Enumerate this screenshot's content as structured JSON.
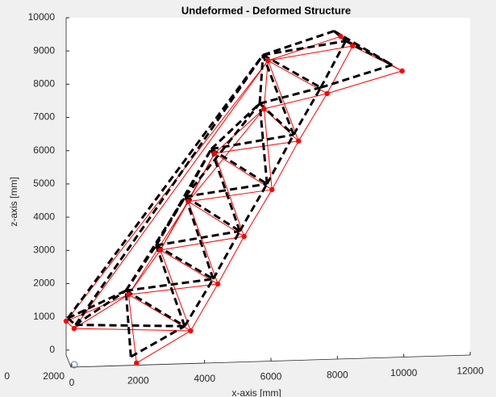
{
  "chart_data": {
    "type": "truss",
    "title": "Undeformed - Deformed Structure",
    "xlabel": "x-axis [mm]",
    "zlabel": "z-axis [mm]",
    "xlim": [
      -170,
      12000
    ],
    "xticks": [
      0,
      2000,
      4000,
      6000,
      8000,
      10000,
      12000
    ],
    "ylim": [
      -270,
      10000
    ],
    "yticks": [
      0,
      1000,
      2000,
      3000,
      4000,
      5000,
      6000,
      7000,
      8000,
      9000,
      10000
    ],
    "depth_ticks": [
      2000,
      0
    ],
    "members": [
      [
        0,
        1
      ],
      [
        0,
        13
      ],
      [
        1,
        13
      ],
      [
        0,
        3
      ],
      [
        1,
        3
      ],
      [
        1,
        4
      ],
      [
        2,
        3
      ],
      [
        2,
        4
      ],
      [
        3,
        4
      ],
      [
        3,
        5
      ],
      [
        3,
        6
      ],
      [
        4,
        6
      ],
      [
        4,
        5
      ],
      [
        5,
        6
      ],
      [
        5,
        7
      ],
      [
        5,
        8
      ],
      [
        6,
        8
      ],
      [
        6,
        7
      ],
      [
        7,
        8
      ],
      [
        7,
        9
      ],
      [
        7,
        10
      ],
      [
        8,
        10
      ],
      [
        8,
        9
      ],
      [
        9,
        10
      ],
      [
        9,
        11
      ],
      [
        9,
        12
      ],
      [
        10,
        12
      ],
      [
        10,
        11
      ],
      [
        11,
        12
      ],
      [
        11,
        13
      ],
      [
        11,
        14
      ],
      [
        12,
        14
      ],
      [
        12,
        13
      ],
      [
        13,
        14
      ],
      [
        13,
        15
      ],
      [
        13,
        16
      ],
      [
        14,
        15
      ],
      [
        14,
        17
      ],
      [
        15,
        17
      ],
      [
        16,
        17
      ],
      [
        16,
        15
      ],
      [
        3,
        7
      ],
      [
        5,
        9
      ],
      [
        7,
        11
      ]
    ],
    "series": [
      {
        "color": "#ff0000",
        "dashed": false,
        "x": [
          -170,
          70,
          1950,
          1710,
          3580,
          2670,
          4400,
          3510,
          5190,
          4300,
          6030,
          5790,
          6830,
          5910,
          7690,
          8460,
          8100,
          9950
        ],
        "z": [
          870,
          650,
          -390,
          1670,
          580,
          3010,
          1990,
          4470,
          3420,
          5920,
          4830,
          7260,
          6290,
          8710,
          7720,
          9150,
          9440,
          8400
        ]
      },
      {
        "color": "#000000",
        "dashed": true,
        "x": [
          -120,
          110,
          1780,
          1630,
          3400,
          2540,
          4260,
          3420,
          5060,
          4200,
          5880,
          5660,
          6680,
          5760,
          7500,
          8250,
          7900,
          9650
        ],
        "z": [
          960,
          760,
          -200,
          1790,
          720,
          3150,
          2140,
          4620,
          3580,
          6050,
          5000,
          7420,
          6480,
          8880,
          7900,
          9300,
          9600,
          8580
        ]
      }
    ]
  }
}
